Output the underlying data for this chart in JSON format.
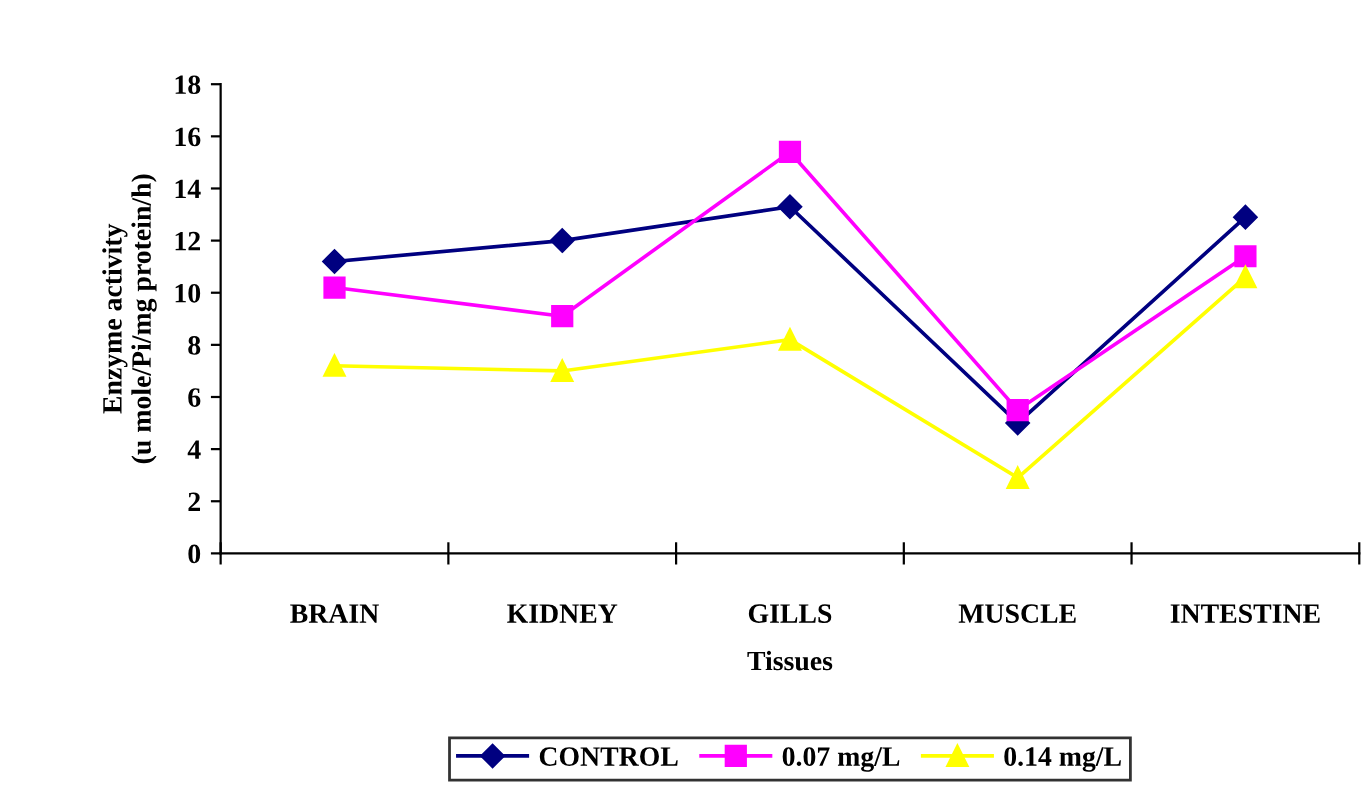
{
  "chart_data": {
    "type": "line",
    "xlabel": "Tissues",
    "ylabel": "Enzyme activity\n(u mole/Pi/mg protein/h)",
    "categories": [
      "BRAIN",
      "KIDNEY",
      "GILLS",
      "MUSCLE",
      "INTESTINE"
    ],
    "series": [
      {
        "name": "CONTROL",
        "color": "#000080",
        "marker": "diamond",
        "values": [
          11.2,
          12.0,
          13.3,
          5.0,
          12.9
        ]
      },
      {
        "name": "0.07 mg/L",
        "color": "#ff00ff",
        "marker": "square",
        "values": [
          10.2,
          9.1,
          15.4,
          5.5,
          11.4
        ]
      },
      {
        "name": "0.14 mg/L",
        "color": "#ffff00",
        "marker": "triangle",
        "values": [
          7.2,
          7.0,
          8.2,
          2.9,
          10.6
        ]
      }
    ],
    "ylim": [
      0,
      18
    ],
    "yticks": [
      0,
      2,
      4,
      6,
      8,
      10,
      12,
      14,
      16,
      18
    ],
    "grid": false,
    "legend": "bottom",
    "line_style": "solid"
  }
}
